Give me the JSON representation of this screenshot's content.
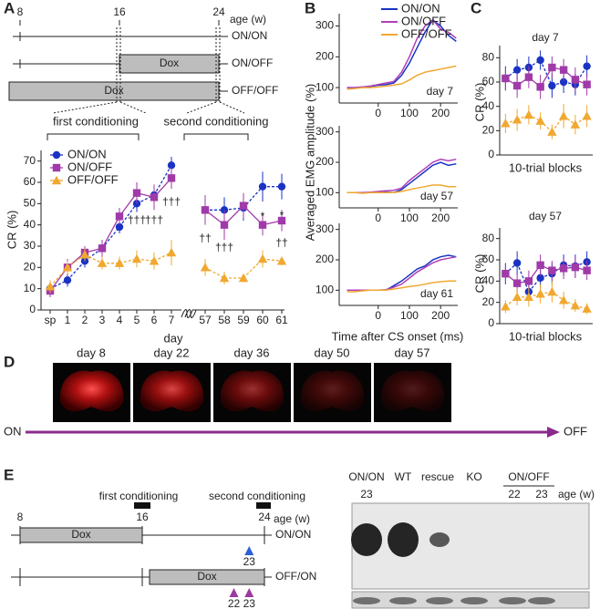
{
  "panel_labels": [
    "A",
    "B",
    "C",
    "D",
    "E"
  ],
  "timeline_a": {
    "ticks": [
      8,
      16,
      24
    ],
    "xlim": [
      8,
      24
    ],
    "unit": "age (w)",
    "rows": [
      {
        "label": "ON/ON"
      },
      {
        "label": "ON/OFF",
        "bar": "Dox"
      },
      {
        "label": "OFF/OFF",
        "bar": "Dox"
      }
    ],
    "phases": [
      "first conditioning",
      "second conditioning"
    ]
  },
  "chart_data": [
    {
      "type": "line",
      "ylabel": "CR (%)",
      "xlabel": "day",
      "categories": [
        "sp",
        "1",
        "2",
        "3",
        "4",
        "5",
        "6",
        "7",
        "57",
        "58",
        "59",
        "60",
        "61"
      ],
      "ylim": [
        0,
        75
      ],
      "yticks": [
        0,
        10,
        20,
        30,
        40,
        50,
        60,
        70
      ],
      "legend": "upper left",
      "series": [
        {
          "name": "ON/ON",
          "color": "#1a33c4",
          "marker": "circle",
          "linestyle": "dashed",
          "values": [
            10,
            14,
            23,
            29,
            39,
            50,
            54,
            68,
            47,
            47,
            48,
            58,
            58
          ],
          "errors": [
            3,
            3,
            3,
            3,
            3,
            4,
            4,
            4,
            6,
            6,
            6,
            7,
            6
          ]
        },
        {
          "name": "ON/OFF",
          "color": "#a03aa8",
          "marker": "square",
          "linestyle": "solid",
          "values": [
            9,
            20,
            27,
            29,
            44,
            55,
            53,
            62,
            47,
            40,
            49,
            40,
            42
          ],
          "errors": [
            3,
            4,
            3,
            4,
            4,
            5,
            6,
            5,
            7,
            7,
            6,
            5,
            5
          ]
        },
        {
          "name": "OFF/OFF",
          "color": "#f0a830",
          "marker": "triangle",
          "linestyle": "dashed",
          "values": [
            11,
            20,
            26,
            22,
            22,
            24,
            23,
            27,
            20,
            15,
            15,
            24,
            23
          ],
          "errors": [
            3,
            3,
            3,
            3,
            3,
            4,
            4,
            6,
            4,
            3,
            2,
            4,
            2
          ]
        }
      ],
      "annotations": [
        "†††",
        "†††",
        "†††",
        "††",
        "†††",
        "*",
        "*",
        "††"
      ]
    },
    {
      "type": "line",
      "title": "day 7",
      "x": [
        -100,
        -75,
        -50,
        -25,
        0,
        25,
        50,
        75,
        100,
        125,
        150,
        175,
        200,
        225,
        250
      ],
      "xlim": [
        -125,
        255
      ],
      "xticks": [
        0,
        100,
        200
      ],
      "ylim": [
        50,
        340
      ],
      "yticks": [
        100,
        200,
        300
      ],
      "legend": "top",
      "series": [
        {
          "name": "ON/ON",
          "color": "#1a33c4",
          "values": [
            100,
            100,
            102,
            104,
            108,
            110,
            115,
            140,
            180,
            230,
            280,
            320,
            300,
            270,
            250
          ]
        },
        {
          "name": "ON/OFF",
          "color": "#b040b8",
          "values": [
            100,
            100,
            102,
            105,
            110,
            115,
            120,
            150,
            200,
            260,
            300,
            320,
            290,
            280,
            260
          ]
        },
        {
          "name": "OFF/OFF",
          "color": "#f0a830",
          "values": [
            95,
            97,
            100,
            100,
            102,
            105,
            108,
            112,
            125,
            140,
            150,
            155,
            160,
            165,
            170
          ]
        }
      ]
    },
    {
      "type": "line",
      "title": "day 57",
      "ylabel": "Averaged EMG amplitude (%)",
      "x": [
        -100,
        -75,
        -50,
        -25,
        0,
        25,
        50,
        75,
        100,
        125,
        150,
        175,
        200,
        225,
        250
      ],
      "xlim": [
        -125,
        255
      ],
      "xticks": [
        0,
        100,
        200
      ],
      "ylim": [
        50,
        320
      ],
      "yticks": [
        100,
        200,
        300
      ],
      "series": [
        {
          "name": "ON/ON",
          "color": "#1a33c4",
          "values": [
            100,
            100,
            100,
            100,
            100,
            102,
            100,
            110,
            130,
            150,
            170,
            190,
            200,
            190,
            195
          ]
        },
        {
          "name": "ON/OFF",
          "color": "#b040b8",
          "values": [
            100,
            100,
            100,
            102,
            104,
            106,
            108,
            115,
            140,
            160,
            180,
            200,
            210,
            205,
            210
          ]
        },
        {
          "name": "OFF/OFF",
          "color": "#f0a830",
          "values": [
            100,
            100,
            98,
            100,
            100,
            100,
            100,
            104,
            110,
            115,
            120,
            125,
            125,
            120,
            120
          ]
        }
      ]
    },
    {
      "type": "line",
      "title": "day 61",
      "xlabel": "Time after CS onset (ms)",
      "x": [
        -100,
        -75,
        -50,
        -25,
        0,
        25,
        50,
        75,
        100,
        125,
        150,
        175,
        200,
        225,
        250
      ],
      "xlim": [
        -125,
        255
      ],
      "xticks": [
        0,
        100,
        200
      ],
      "ylim": [
        50,
        320
      ],
      "yticks": [
        100,
        200,
        300
      ],
      "series": [
        {
          "name": "ON/ON",
          "color": "#1a33c4",
          "values": [
            100,
            100,
            100,
            100,
            100,
            100,
            115,
            130,
            150,
            170,
            180,
            200,
            210,
            215,
            210
          ]
        },
        {
          "name": "ON/OFF",
          "color": "#b040b8",
          "values": [
            100,
            100,
            100,
            100,
            100,
            102,
            110,
            120,
            140,
            160,
            175,
            190,
            200,
            205,
            210
          ]
        },
        {
          "name": "OFF/OFF",
          "color": "#f0a830",
          "values": [
            95,
            95,
            98,
            100,
            100,
            100,
            104,
            108,
            112,
            115,
            120,
            125,
            128,
            130,
            130
          ]
        }
      ]
    },
    {
      "type": "line",
      "title": "day 7",
      "ylabel": "CR (%)",
      "xlabel": "10-trial blocks",
      "x": [
        1,
        2,
        3,
        4,
        5,
        6,
        7,
        8
      ],
      "xlim": [
        0.5,
        8.5
      ],
      "ylim": [
        0,
        90
      ],
      "yticks": [
        0,
        20,
        40,
        60,
        80
      ],
      "series": [
        {
          "name": "ON/ON",
          "color": "#1a33c4",
          "marker": "circle",
          "linestyle": "dashed",
          "values": [
            63,
            70,
            72,
            78,
            57,
            60,
            58,
            73
          ],
          "errors": [
            10,
            9,
            9,
            8,
            10,
            9,
            9,
            9
          ]
        },
        {
          "name": "ON/OFF",
          "color": "#a03aa8",
          "marker": "square",
          "linestyle": "solid",
          "values": [
            63,
            57,
            64,
            56,
            72,
            70,
            62,
            58
          ],
          "errors": [
            9,
            10,
            9,
            10,
            9,
            9,
            10,
            9
          ]
        },
        {
          "name": "OFF/OFF",
          "color": "#f0a830",
          "marker": "triangle",
          "linestyle": "dashed",
          "values": [
            26,
            29,
            33,
            28,
            19,
            32,
            25,
            32
          ],
          "errors": [
            8,
            9,
            8,
            7,
            6,
            10,
            8,
            9
          ]
        }
      ]
    },
    {
      "type": "line",
      "title": "day 57",
      "ylabel": "CR (%)",
      "xlabel": "10-trial blocks",
      "x": [
        1,
        2,
        3,
        4,
        5,
        6,
        7,
        8
      ],
      "xlim": [
        0.5,
        8.5
      ],
      "ylim": [
        0,
        90
      ],
      "yticks": [
        0,
        20,
        40,
        60,
        80
      ],
      "series": [
        {
          "name": "ON/ON",
          "color": "#1a33c4",
          "marker": "circle",
          "linestyle": "dashed",
          "values": [
            47,
            57,
            30,
            43,
            47,
            55,
            54,
            58
          ],
          "errors": [
            10,
            11,
            9,
            10,
            10,
            10,
            11,
            10
          ]
        },
        {
          "name": "ON/OFF",
          "color": "#a03aa8",
          "marker": "square",
          "linestyle": "solid",
          "values": [
            47,
            38,
            40,
            55,
            50,
            52,
            53,
            50
          ],
          "errors": [
            9,
            10,
            10,
            10,
            9,
            10,
            10,
            9
          ]
        },
        {
          "name": "OFF/OFF",
          "color": "#f0a830",
          "marker": "triangle",
          "linestyle": "dashed",
          "values": [
            16,
            25,
            25,
            28,
            30,
            22,
            17,
            14
          ],
          "errors": [
            6,
            8,
            9,
            9,
            10,
            8,
            6,
            5
          ]
        }
      ]
    }
  ],
  "panel_d": {
    "days": [
      "day 8",
      "day 22",
      "day 36",
      "day 50",
      "day 57"
    ],
    "start": "ON",
    "end": "OFF"
  },
  "panel_e": {
    "timeline": {
      "ticks": [
        8,
        16,
        24
      ],
      "xlim": [
        8,
        24
      ],
      "unit": "age (w)",
      "phases": [
        "first conditioning",
        "second conditioning"
      ],
      "rows": [
        {
          "label": "ON/ON",
          "bar": "Dox",
          "arrows": [
            23
          ]
        },
        {
          "label": "OFF/ON",
          "bar": "Dox",
          "arrows": [
            22,
            23
          ]
        }
      ]
    },
    "blot": {
      "lanes": [
        "ON/ON",
        "WT",
        "rescue",
        "KO",
        "ON/OFF"
      ],
      "ages": [
        "23",
        "22",
        "23"
      ],
      "age_unit": "age (w)"
    }
  }
}
